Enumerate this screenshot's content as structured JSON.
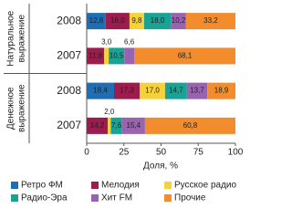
{
  "chart_data": {
    "type": "bar",
    "orientation": "horizontal",
    "stacked": true,
    "categories": [
      "2008",
      "2007",
      "2008",
      "2007"
    ],
    "groups": [
      {
        "lines": [
          "Натуральное",
          "выражение"
        ]
      },
      {
        "lines": [
          "Денежное",
          "выражение"
        ]
      }
    ],
    "group_size": 2,
    "series": [
      {
        "name": "Ретро ФМ",
        "color": "#1f6db3",
        "values": [
          12.8,
          null,
          18.4,
          null
        ],
        "value_labels": [
          "12,8",
          null,
          "18,4",
          null
        ]
      },
      {
        "name": "Мелодия",
        "color": "#9c1c4e",
        "values": [
          16.0,
          11.8,
          17.3,
          14.2
        ],
        "value_labels": [
          "16,0",
          "11,8",
          "17,3",
          "14,2"
        ]
      },
      {
        "name": "Русское радио",
        "color": "#f6d23a",
        "values": [
          9.8,
          3.0,
          17.0,
          2.0
        ],
        "value_labels": [
          "9,8",
          "3,0",
          "17,0",
          "2,0"
        ]
      },
      {
        "name": "Радио-Эра",
        "color": "#19a394",
        "values": [
          18.0,
          10.5,
          14.7,
          7.6
        ],
        "value_labels": [
          "18,0",
          "10,5",
          "14,7",
          "7,6"
        ]
      },
      {
        "name": "Хит FM",
        "color": "#9a63b1",
        "values": [
          10.2,
          6.6,
          13.7,
          15.4
        ],
        "value_labels": [
          "10,2",
          "6,6",
          "13,7",
          "15,4"
        ]
      },
      {
        "name": "Прочие",
        "color": "#f28c2c",
        "values": [
          33.2,
          68.1,
          18.9,
          60.8
        ],
        "value_labels": [
          "33,2",
          "68,1",
          "18,9",
          "60,8"
        ]
      }
    ],
    "xlabel": "Доля, %",
    "xlim": [
      0,
      100
    ],
    "xticks": [
      0,
      25,
      50,
      75,
      100
    ]
  }
}
